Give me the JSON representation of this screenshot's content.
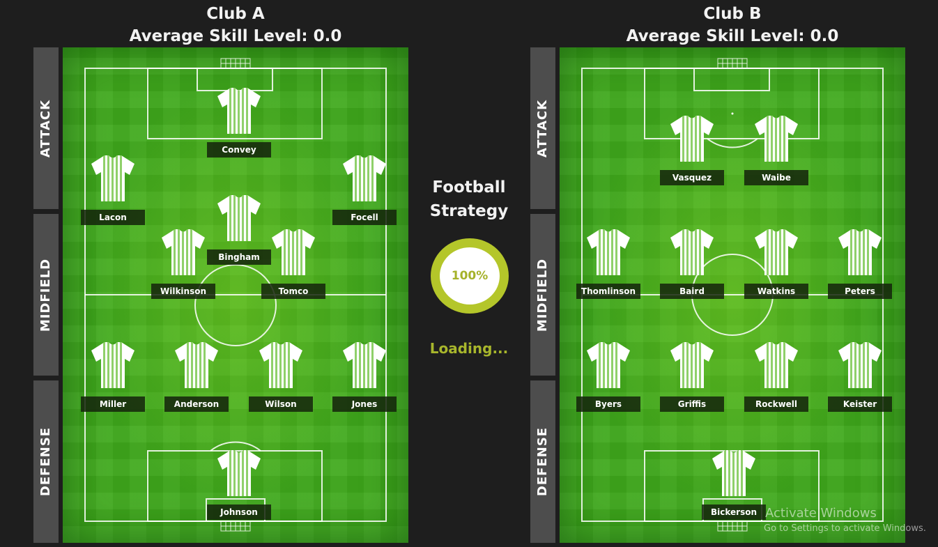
{
  "club_a": {
    "name": "Club A",
    "average_skill": "Average Skill Level: 0.0",
    "players": {
      "convey": "Convey",
      "lacon": "Lacon",
      "focell": "Focell",
      "bingham": "Bingham",
      "wilkinson": "Wilkinson",
      "tomco": "Tomco",
      "miller": "Miller",
      "anderson": "Anderson",
      "wilson": "Wilson",
      "jones": "Jones",
      "johnson": "Johnson"
    }
  },
  "club_b": {
    "name": "Club B",
    "average_skill": "Average Skill Level: 0.0",
    "players": {
      "vasquez": "Vasquez",
      "waibe": "Waibe",
      "thomlinson": "Thomlinson",
      "baird": "Baird",
      "watkins": "Watkins",
      "peters": "Peters",
      "byers": "Byers",
      "griffis": "Griffis",
      "rockwell": "Rockwell",
      "keister": "Keister",
      "bickerson": "Bickerson"
    }
  },
  "zones": {
    "attack": "ATTACK",
    "midfield": "MIDFIELD",
    "defense": "DEFENSE"
  },
  "center": {
    "title_line1": "Football",
    "title_line2": "Strategy",
    "progress": "100%",
    "loading": "Loading..."
  },
  "watermark": {
    "line1": "Activate Windows",
    "line2": "Go to Settings to activate Windows."
  },
  "colors": {
    "background": "#1e1e1e",
    "pitch": "#3fa91c",
    "zone_label_bg": "#4d4d4d",
    "progress_ring": "#b4c62a",
    "loading_text": "#a8b62c",
    "shirt": "#ffffff",
    "shirt_stripes": "#8fd06a"
  },
  "icons": {
    "player": "striped-jersey-icon",
    "goal": "goal-net-icon"
  }
}
